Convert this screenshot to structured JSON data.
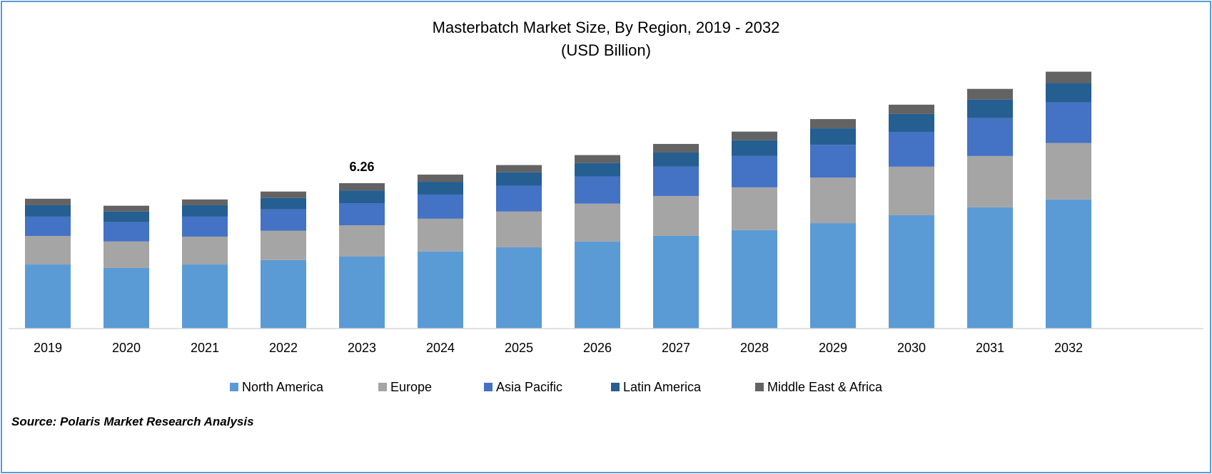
{
  "chart_data": {
    "type": "bar",
    "stacked": true,
    "title": "Masterbatch Market Size, By Region, 2019 - 2032",
    "subtitle": "(USD Billion)",
    "xlabel": "",
    "ylabel": "",
    "categories": [
      "2019",
      "2020",
      "2021",
      "2022",
      "2023",
      "2024",
      "2025",
      "2026",
      "2027",
      "2028",
      "2029",
      "2030",
      "2031",
      "2032"
    ],
    "series": [
      {
        "name": "North America",
        "color": "#5b9bd5",
        "values": [
          2.76,
          2.61,
          2.76,
          2.95,
          3.1,
          3.32,
          3.5,
          3.75,
          3.99,
          4.24,
          4.54,
          4.88,
          5.22,
          5.56
        ]
      },
      {
        "name": "Europe",
        "color": "#a5a5a5",
        "values": [
          1.23,
          1.14,
          1.2,
          1.26,
          1.35,
          1.41,
          1.54,
          1.63,
          1.72,
          1.84,
          1.96,
          2.09,
          2.21,
          2.43
        ]
      },
      {
        "name": "Asia Pacific",
        "color": "#4472c4",
        "values": [
          0.83,
          0.83,
          0.86,
          0.92,
          0.95,
          1.04,
          1.11,
          1.17,
          1.26,
          1.35,
          1.41,
          1.5,
          1.63,
          1.75
        ]
      },
      {
        "name": "Latin America",
        "color": "#255e91",
        "values": [
          0.49,
          0.46,
          0.49,
          0.49,
          0.55,
          0.55,
          0.58,
          0.58,
          0.61,
          0.68,
          0.71,
          0.77,
          0.8,
          0.83
        ]
      },
      {
        "name": "Middle East & Africa",
        "color": "#636363",
        "values": [
          0.28,
          0.25,
          0.25,
          0.28,
          0.31,
          0.31,
          0.31,
          0.34,
          0.37,
          0.37,
          0.4,
          0.4,
          0.46,
          0.49
        ]
      }
    ],
    "annotations": [
      {
        "category": "2023",
        "text": "6.26"
      }
    ],
    "ylim": [
      0,
      12
    ],
    "grid": false,
    "y_axis_visible": false,
    "legend_position": "bottom"
  },
  "source": "Source: Polaris Market Research Analysis"
}
